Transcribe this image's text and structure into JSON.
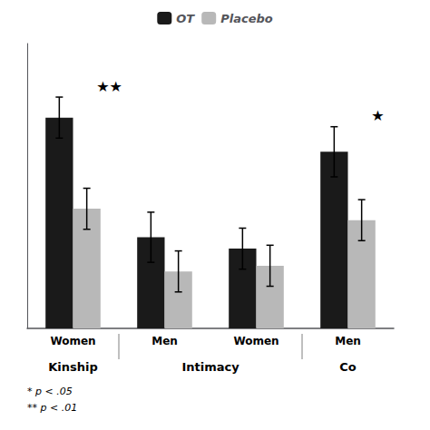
{
  "chart_data": {
    "type": "bar",
    "categories": [
      "Women",
      "Men",
      "Women",
      "Men"
    ],
    "category_groups": [
      "Kinship",
      "Intimacy",
      "Intimacy",
      "Co"
    ],
    "series": [
      {
        "name": "OT",
        "color": "#1a1a1a",
        "values": [
          4.35,
          3.3,
          3.2,
          4.05
        ],
        "errors": [
          0.18,
          0.22,
          0.18,
          0.22
        ]
      },
      {
        "name": "Placebo",
        "color": "#b8b8b8",
        "values": [
          3.55,
          3.0,
          3.05,
          3.45
        ],
        "errors": [
          0.18,
          0.18,
          0.18,
          0.18
        ]
      }
    ],
    "significance": [
      "★★",
      null,
      null,
      "★"
    ],
    "notes": [
      "* p < .05",
      "** p < .01"
    ],
    "ylim": [
      2.5,
      5.0
    ],
    "yticks": [],
    "grid": false,
    "legend": "top",
    "tick_labels": "x"
  }
}
